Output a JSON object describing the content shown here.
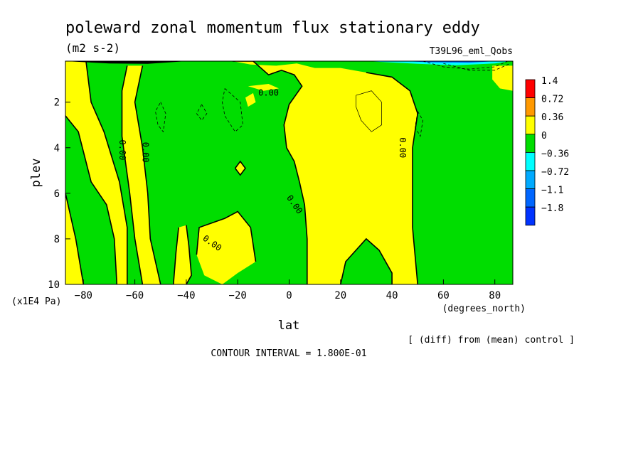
{
  "chart_data": {
    "type": "heatmap",
    "title": "poleward zonal momentum flux stationary eddy",
    "units": "(m2 s-2)",
    "experiment": "T39L96_eml_Qobs",
    "xlabel": "lat",
    "xunits": "(degrees_north)",
    "ylabel": "plev",
    "yunits": "(x1E4 Pa)",
    "footnote": "[ (diff) from (mean) control ]",
    "contour_interval_text": "CONTOUR INTERVAL = 1.800E-01",
    "x_ticks": [
      -80,
      -60,
      -40,
      -20,
      0,
      20,
      40,
      60,
      80
    ],
    "y_ticks": [
      2,
      4,
      6,
      8,
      10
    ],
    "xlim": [
      -87,
      87
    ],
    "ylim": [
      10,
      0.2
    ],
    "legend": {
      "placement": "right",
      "levels": [
        "1.4",
        "0.72",
        "0.36",
        "0",
        "-0.36",
        "-0.72",
        "-1.1",
        "-1.8"
      ],
      "colors": [
        "#ff0000",
        "#ff9900",
        "#ffff00",
        "#00dd00",
        "#00ffff",
        "#00aaff",
        "#0066ff",
        "#0033ff"
      ]
    },
    "contour_labels": [
      {
        "text": "0.00",
        "lat": -8,
        "plev": 1.6
      },
      {
        "text": "0.00",
        "lat": -65,
        "plev": 4.1
      },
      {
        "text": "0.00",
        "lat": -56,
        "plev": 4.2
      },
      {
        "text": "0.00",
        "lat": 44,
        "plev": 4.0
      },
      {
        "text": "0.00",
        "lat": 2,
        "plev": 6.5
      },
      {
        "text": "0.00",
        "lat": -30,
        "plev": 8.2
      }
    ],
    "positive_regions": [
      [
        [
          -87,
          0.2
        ],
        [
          -87,
          10
        ],
        [
          -80,
          10
        ],
        [
          -83,
          8
        ],
        [
          -87,
          6
        ]
      ],
      [
        [
          -87,
          0.2
        ],
        [
          -79,
          0.2
        ],
        [
          -77,
          2
        ],
        [
          -72,
          3.3
        ],
        [
          -66,
          5.5
        ],
        [
          -63,
          7.5
        ],
        [
          -63,
          10
        ],
        [
          -67,
          10
        ],
        [
          -68,
          8
        ],
        [
          -71,
          6.5
        ],
        [
          -77,
          5.5
        ],
        [
          -82,
          3.3
        ],
        [
          -87,
          2.6
        ]
      ],
      [
        [
          -63,
          0.4
        ],
        [
          -57,
          0.4
        ],
        [
          -60,
          2
        ],
        [
          -57,
          4
        ],
        [
          -55,
          6
        ],
        [
          -54,
          8
        ],
        [
          -50,
          10
        ],
        [
          -57,
          10
        ],
        [
          -60,
          8
        ],
        [
          -62,
          6
        ],
        [
          -65,
          3.5
        ],
        [
          -65,
          1.5
        ]
      ],
      [
        [
          -40,
          7.4
        ],
        [
          -39,
          8.3
        ],
        [
          -38,
          9.6
        ],
        [
          -40,
          10
        ],
        [
          -45,
          10
        ],
        [
          -44,
          8.6
        ],
        [
          -43,
          7.5
        ]
      ],
      [
        [
          -36,
          8.7
        ],
        [
          -35,
          7.5
        ],
        [
          -30,
          7.3
        ],
        [
          -25,
          7.1
        ],
        [
          -20,
          6.8
        ],
        [
          -15,
          7.5
        ],
        [
          -13,
          9
        ],
        [
          -20,
          9.5
        ],
        [
          -26,
          10
        ],
        [
          -33,
          9.6
        ]
      ],
      [
        [
          -22,
          0.2
        ],
        [
          -14,
          0.2
        ],
        [
          -8,
          0.8
        ],
        [
          -3,
          0.6
        ],
        [
          2,
          0.8
        ],
        [
          5,
          1.3
        ],
        [
          0,
          2.1
        ],
        [
          -2,
          3
        ],
        [
          -1,
          4
        ],
        [
          2,
          4.6
        ],
        [
          4,
          5.5
        ],
        [
          6,
          6.5
        ],
        [
          7,
          8
        ],
        [
          7,
          10
        ],
        [
          20,
          10
        ],
        [
          22,
          9
        ],
        [
          30,
          8
        ],
        [
          35,
          8.5
        ],
        [
          40,
          9.5
        ],
        [
          40,
          10
        ],
        [
          50,
          10
        ],
        [
          48,
          7.5
        ],
        [
          48,
          4
        ],
        [
          50,
          2.5
        ],
        [
          47,
          1.5
        ],
        [
          40,
          0.9
        ],
        [
          30,
          0.7
        ],
        [
          20,
          0.5
        ],
        [
          10,
          0.5
        ],
        [
          3,
          0.3
        ],
        [
          -5,
          0.4
        ],
        [
          -15,
          0.35
        ]
      ],
      [
        [
          -21,
          4.9
        ],
        [
          -19,
          4.6
        ],
        [
          -17,
          4.9
        ],
        [
          -19,
          5.2
        ]
      ],
      [
        [
          -16,
          1.3
        ],
        [
          -8,
          1.2
        ],
        [
          -4,
          1.4
        ],
        [
          -10,
          1.5
        ]
      ],
      [
        [
          -17,
          1.8
        ],
        [
          -14,
          1.6
        ],
        [
          -13,
          2
        ],
        [
          -16,
          2.2
        ]
      ],
      [
        [
          79,
          0.4
        ],
        [
          87,
          0.4
        ],
        [
          87,
          1.5
        ],
        [
          82,
          1.4
        ],
        [
          79,
          1
        ]
      ]
    ],
    "contour_lines": [
      {
        "type": "solid",
        "points": [
          [
            -80,
            10
          ],
          [
            -83,
            8
          ],
          [
            -87,
            6
          ]
        ]
      },
      {
        "type": "solid",
        "points": [
          [
            -79,
            0.2
          ],
          [
            -77,
            2
          ],
          [
            -72,
            3.3
          ],
          [
            -66,
            5.5
          ],
          [
            -63,
            7.5
          ],
          [
            -63,
            10
          ]
        ]
      },
      {
        "type": "solid",
        "points": [
          [
            -67,
            10
          ],
          [
            -68,
            8
          ],
          [
            -71,
            6.5
          ],
          [
            -77,
            5.5
          ],
          [
            -82,
            3.3
          ],
          [
            -87,
            2.6
          ]
        ]
      },
      {
        "type": "solid",
        "points": [
          [
            -57,
            0.4
          ],
          [
            -60,
            2
          ],
          [
            -57,
            4
          ],
          [
            -55,
            6
          ],
          [
            -54,
            8
          ],
          [
            -50,
            10
          ]
        ]
      },
      {
        "type": "solid",
        "points": [
          [
            -57,
            10
          ],
          [
            -60,
            8
          ],
          [
            -62,
            6
          ],
          [
            -65,
            3.5
          ],
          [
            -65,
            1.5
          ],
          [
            -63,
            0.4
          ]
        ]
      },
      {
        "type": "solid",
        "points": [
          [
            -13,
            9
          ],
          [
            -15,
            7.5
          ],
          [
            -20,
            6.8
          ],
          [
            -25,
            7.1
          ],
          [
            -30,
            7.3
          ],
          [
            -35,
            7.5
          ],
          [
            -36,
            8.7
          ]
        ]
      },
      {
        "type": "solid",
        "points": [
          [
            -40,
            7.4
          ],
          [
            -39,
            8.3
          ],
          [
            -38,
            9.6
          ],
          [
            -40,
            10
          ]
        ]
      },
      {
        "type": "solid",
        "points": [
          [
            -45,
            10
          ],
          [
            -44,
            8.6
          ],
          [
            -43,
            7.5
          ]
        ]
      },
      {
        "type": "solid",
        "points": [
          [
            -22,
            0.2
          ],
          [
            -14,
            0.2
          ],
          [
            -8,
            0.8
          ],
          [
            -3,
            0.6
          ],
          [
            2,
            0.8
          ],
          [
            5,
            1.3
          ],
          [
            0,
            2.1
          ],
          [
            -2,
            3
          ],
          [
            -1,
            4
          ],
          [
            2,
            4.6
          ],
          [
            4,
            5.5
          ],
          [
            6,
            6.5
          ],
          [
            7,
            8
          ],
          [
            7,
            10
          ]
        ]
      },
      {
        "type": "solid",
        "points": [
          [
            20,
            10
          ],
          [
            22,
            9
          ],
          [
            30,
            8
          ],
          [
            35,
            8.5
          ],
          [
            40,
            9.5
          ],
          [
            40,
            10
          ]
        ]
      },
      {
        "type": "solid",
        "points": [
          [
            50,
            10
          ],
          [
            48,
            7.5
          ],
          [
            48,
            4
          ],
          [
            50,
            2.5
          ],
          [
            47,
            1.5
          ],
          [
            40,
            0.9
          ],
          [
            30,
            0.7
          ]
        ]
      },
      {
        "type": "solid",
        "points": [
          [
            -21,
            4.9
          ],
          [
            -19,
            4.6
          ],
          [
            -17,
            4.9
          ],
          [
            -19,
            5.2
          ],
          [
            -21,
            4.9
          ]
        ]
      },
      {
        "type": "dashed",
        "points": [
          [
            -50,
            2
          ],
          [
            -48,
            2.5
          ],
          [
            -49,
            3.3
          ],
          [
            -51,
            3
          ],
          [
            -52,
            2.4
          ],
          [
            -50,
            2
          ]
        ]
      },
      {
        "type": "dashed",
        "points": [
          [
            -34,
            2.1
          ],
          [
            -32,
            2.5
          ],
          [
            -34,
            2.8
          ],
          [
            -36,
            2.5
          ],
          [
            -34,
            2.1
          ]
        ]
      },
      {
        "type": "dashed",
        "points": [
          [
            -25,
            1.4
          ],
          [
            -19,
            2
          ],
          [
            -18,
            3
          ],
          [
            -21,
            3.3
          ],
          [
            -25,
            2.6
          ],
          [
            -26,
            2
          ],
          [
            -25,
            1.4
          ]
        ]
      },
      {
        "type": "dashed",
        "points": [
          [
            50,
            2.4
          ],
          [
            52,
            2.8
          ],
          [
            51,
            3.5
          ],
          [
            49,
            3.1
          ],
          [
            50,
            2.4
          ]
        ]
      },
      {
        "type": "dashed",
        "points": [
          [
            60,
            0.3
          ],
          [
            70,
            0.6
          ],
          [
            80,
            0.6
          ],
          [
            86,
            0.3
          ]
        ]
      },
      {
        "type": "dashed",
        "points": [
          [
            52,
            0.2
          ],
          [
            60,
            0.45
          ],
          [
            70,
            0.55
          ],
          [
            80,
            0.45
          ],
          [
            85,
            0.2
          ]
        ]
      },
      {
        "type": "thin",
        "points": [
          [
            26,
            1.7
          ],
          [
            32,
            1.5
          ],
          [
            36,
            2
          ],
          [
            36,
            3
          ],
          [
            32,
            3.3
          ],
          [
            28,
            2.8
          ],
          [
            26,
            2.2
          ],
          [
            26,
            1.7
          ]
        ]
      }
    ]
  }
}
